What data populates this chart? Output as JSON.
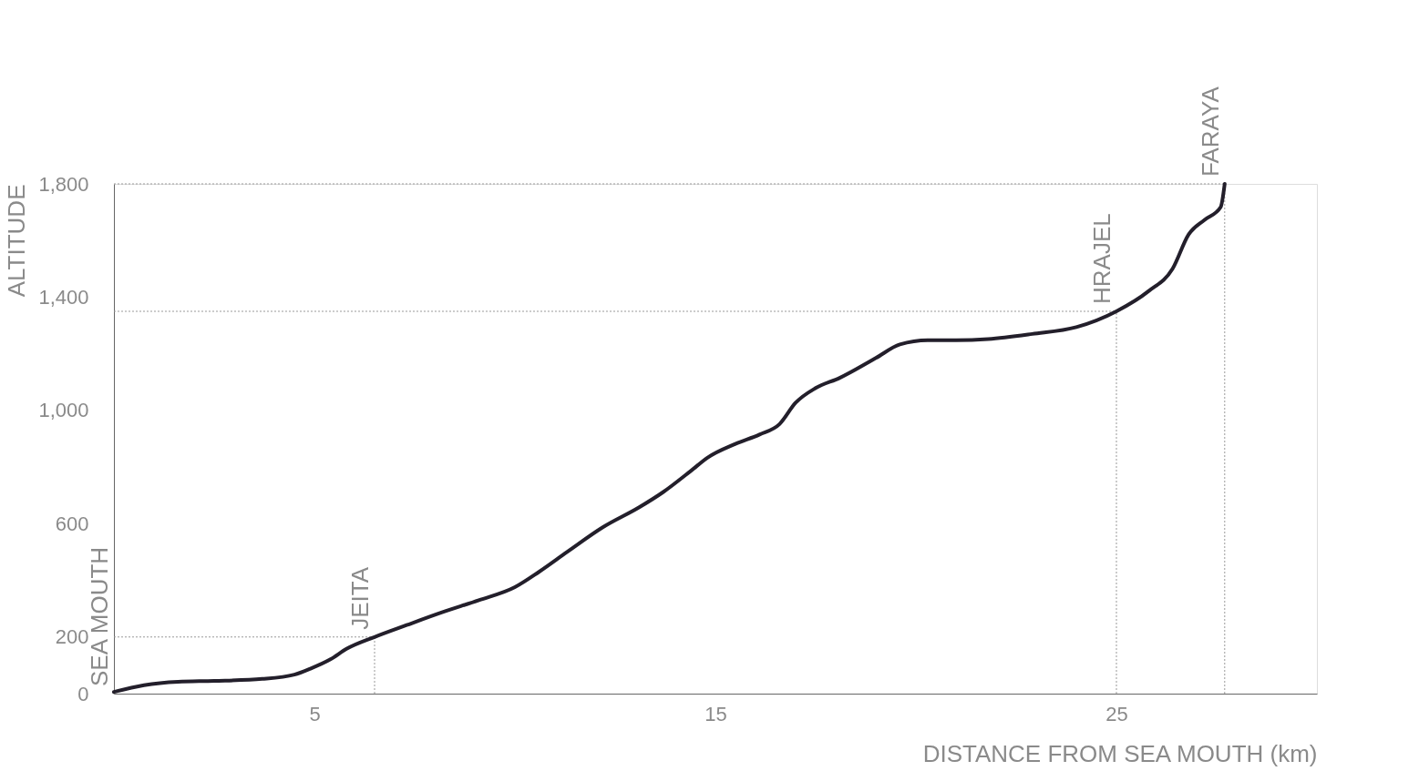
{
  "chart_data": {
    "type": "line",
    "xlabel": "DISTANCE FROM SEA MOUTH (km)",
    "ylabel": "ALTITUDE",
    "x": [
      0,
      0.75,
      1.6,
      2.5,
      3.7,
      4.5,
      4.9,
      5.4,
      5.8,
      6.5,
      7.3,
      8.2,
      9.1,
      10,
      10.6,
      11.3,
      12.2,
      13.1,
      13.7,
      14.4,
      14.8,
      15.5,
      16.1,
      16.6,
      17,
      17.5,
      18.1,
      19,
      19.6,
      20.3,
      21,
      21.8,
      22.9,
      24,
      25,
      25.8,
      26.4,
      26.8,
      27.2,
      27.6,
      27.7
    ],
    "series": [
      {
        "color": "#231f2b",
        "values": [
          6,
          30,
          42,
          45,
          52,
          67,
          88,
          121,
          158,
          200,
          242,
          288,
          330,
          376,
          430,
          500,
          588,
          658,
          712,
          788,
          833,
          882,
          915,
          952,
          1027,
          1079,
          1115,
          1185,
          1233,
          1248,
          1248,
          1252,
          1270,
          1294,
          1350,
          1421,
          1500,
          1621,
          1673,
          1718,
          1800
        ]
      }
    ],
    "xlim": [
      0,
      30
    ],
    "xticks": [
      5,
      15,
      25
    ],
    "ylim": [
      0,
      1800
    ],
    "yticks": [
      0,
      200,
      600,
      {
        "value": 1000,
        "label": "1,000"
      },
      {
        "value": 1400,
        "label": "1,400"
      },
      {
        "value": 1800,
        "label": "1,800"
      }
    ],
    "marker": "none",
    "line_style": "solid",
    "annotations": [
      {
        "text": "SEA MOUTH",
        "x": 0,
        "y": 0
      },
      {
        "text": "JEITA",
        "x": 6.5,
        "y": 200
      },
      {
        "text": "HRAJEL",
        "x": 25,
        "y": 1350
      },
      {
        "text": "FARAYA",
        "x": 27.7,
        "y": 1800
      }
    ]
  }
}
